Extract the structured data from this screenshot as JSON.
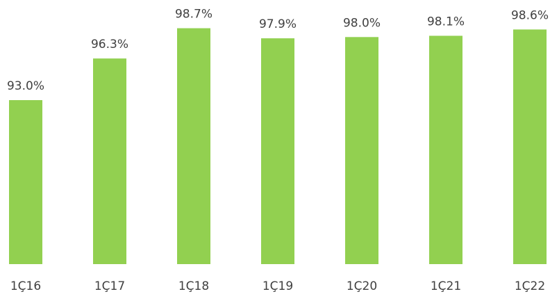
{
  "chart_data": {
    "type": "bar",
    "categories": [
      "1Ç16",
      "1Ç17",
      "1Ç18",
      "1Ç19",
      "1Ç20",
      "1Ç21",
      "1Ç22"
    ],
    "values": [
      93.0,
      96.3,
      98.7,
      97.9,
      98.0,
      98.1,
      98.6
    ],
    "value_labels": [
      "93.0%",
      "96.3%",
      "98.7%",
      "97.9%",
      "98.0%",
      "98.1%",
      "98.6%"
    ],
    "color": "#92d050",
    "ylim": [
      80,
      100
    ]
  }
}
